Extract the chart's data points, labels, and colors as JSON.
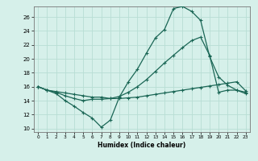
{
  "xlabel": "Humidex (Indice chaleur)",
  "xlim": [
    -0.5,
    23.5
  ],
  "ylim": [
    9.5,
    27.5
  ],
  "yticks": [
    10,
    12,
    14,
    16,
    18,
    20,
    22,
    24,
    26
  ],
  "xticks": [
    0,
    1,
    2,
    3,
    4,
    5,
    6,
    7,
    8,
    9,
    10,
    11,
    12,
    13,
    14,
    15,
    16,
    17,
    18,
    19,
    20,
    21,
    22,
    23
  ],
  "bg_color": "#d6f0ea",
  "line_color": "#1a6655",
  "grid_color": "#b8ddd4",
  "line1_x": [
    0,
    1,
    2,
    3,
    4,
    5,
    6,
    7,
    8,
    9,
    10,
    11,
    12,
    13,
    14,
    15,
    16,
    17,
    18,
    19,
    20,
    21,
    22,
    23
  ],
  "line1_y": [
    16.0,
    15.5,
    15.0,
    14.0,
    13.2,
    12.3,
    11.5,
    10.2,
    11.2,
    14.5,
    16.7,
    18.5,
    20.8,
    23.0,
    24.2,
    27.2,
    27.5,
    26.8,
    25.5,
    20.3,
    17.4,
    16.2,
    15.5,
    15.0
  ],
  "line2_x": [
    0,
    1,
    2,
    3,
    4,
    5,
    6,
    7,
    8,
    9,
    10,
    11,
    12,
    13,
    14,
    15,
    16,
    17,
    18,
    19,
    20,
    21,
    22,
    23
  ],
  "line2_y": [
    16.0,
    15.5,
    15.3,
    15.1,
    14.9,
    14.7,
    14.5,
    14.5,
    14.3,
    14.3,
    14.4,
    14.5,
    14.7,
    14.9,
    15.1,
    15.3,
    15.5,
    15.7,
    15.9,
    16.1,
    16.3,
    16.5,
    16.7,
    15.4
  ],
  "line3_x": [
    0,
    1,
    2,
    3,
    4,
    5,
    6,
    7,
    8,
    9,
    10,
    11,
    12,
    13,
    14,
    15,
    16,
    17,
    18,
    19,
    20,
    21,
    22,
    23
  ],
  "line3_y": [
    16.0,
    15.5,
    15.2,
    14.7,
    14.3,
    14.0,
    14.2,
    14.2,
    14.3,
    14.6,
    15.2,
    16.0,
    17.0,
    18.2,
    19.4,
    20.5,
    21.6,
    22.6,
    23.1,
    20.5,
    15.2,
    15.5,
    15.5,
    15.2
  ]
}
